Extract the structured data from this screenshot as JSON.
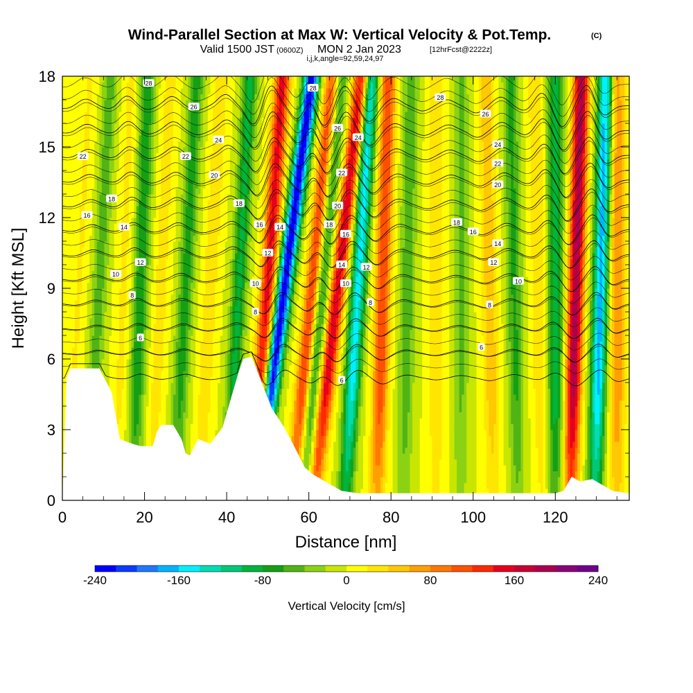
{
  "chart_data": {
    "type": "heatmap",
    "title": "Wind-Parallel Section at Max W: Vertical Velocity & Pot.Temp.",
    "title_mark": "(C)",
    "subtitle_valid": "Valid 1500 JST",
    "subtitle_utc": "(0600Z)",
    "subtitle_date": "MON 2 Jan 2023",
    "subtitle_fcst": "[12hrFcst@2222z]",
    "subtitle_grid": "i,j,k,angle=92,59,24,97",
    "xlabel": "Distance [nm]",
    "ylabel": "Height [Kft MSL]",
    "xlim": [
      0,
      138
    ],
    "ylim": [
      0,
      18
    ],
    "x_ticks": [
      "0",
      "20",
      "40",
      "60",
      "80",
      "100",
      "120"
    ],
    "y_ticks": [
      "0",
      "3",
      "6",
      "9",
      "12",
      "15",
      "18"
    ],
    "colorbar": {
      "title": "Vertical Velocity [cm/s]",
      "range": [
        -240,
        240
      ],
      "tick_labels": [
        "-240",
        "-160",
        "-80",
        "0",
        "80",
        "160",
        "240"
      ],
      "colors": [
        "#0000ff",
        "#0a3cff",
        "#1e78ff",
        "#00b4ff",
        "#00f0ff",
        "#00dcb4",
        "#00c878",
        "#00b43c",
        "#14a014",
        "#50b414",
        "#8cd214",
        "#c8e600",
        "#ffff00",
        "#ffe600",
        "#ffc800",
        "#ffa000",
        "#ff7800",
        "#ff5000",
        "#ff2800",
        "#e6001e",
        "#c80032",
        "#aa0050",
        "#8c0078",
        "#6e008c"
      ]
    },
    "terrain": {
      "x": [
        0,
        1,
        2,
        5,
        9,
        12,
        13,
        14,
        17,
        19,
        22,
        23,
        24,
        27,
        29,
        30,
        31,
        33,
        36,
        39,
        41,
        43,
        44,
        46,
        47,
        49,
        51,
        54,
        57,
        59,
        61,
        63,
        65,
        68,
        72,
        80,
        90,
        100,
        110,
        120,
        122,
        124,
        126,
        129,
        131,
        134,
        138
      ],
      "y": [
        0,
        5.2,
        5.6,
        5.6,
        5.6,
        4.6,
        3.6,
        2.6,
        2.4,
        2.3,
        2.3,
        2.9,
        3.2,
        3.2,
        2.6,
        2.0,
        1.9,
        2.6,
        2.4,
        3.1,
        4.3,
        5.5,
        6.0,
        6.1,
        5.7,
        4.8,
        3.9,
        3.1,
        2.1,
        1.4,
        1.1,
        0.9,
        0.7,
        0.4,
        0.3,
        0.3,
        0.3,
        0.3,
        0.3,
        0.3,
        0.4,
        1.0,
        0.8,
        0.9,
        0.7,
        0.4,
        0.3
      ]
    },
    "w_bands": [
      {
        "x": 4,
        "w": 22,
        "tilt": 0.3
      },
      {
        "x": 9,
        "w": -50,
        "tilt": 0.3
      },
      {
        "x": 15,
        "w": 25,
        "tilt": 0.2
      },
      {
        "x": 19,
        "w": -75,
        "tilt": 0.2
      },
      {
        "x": 24,
        "w": 30,
        "tilt": 0.25
      },
      {
        "x": 30,
        "w": -70,
        "tilt": 0.3
      },
      {
        "x": 36,
        "w": 35,
        "tilt": 0.3
      },
      {
        "x": 43,
        "w": -85,
        "tilt": 0.3
      },
      {
        "x": 50,
        "w": 150,
        "tilt": 0.4
      },
      {
        "x": 54,
        "w": -240,
        "tilt": 0.75
      },
      {
        "x": 61,
        "w": 140,
        "tilt": 0.55
      },
      {
        "x": 63,
        "w": -95,
        "tilt": 0.5
      },
      {
        "x": 67,
        "w": 160,
        "tilt": 0.65
      },
      {
        "x": 72,
        "w": -150,
        "tilt": 0.35
      },
      {
        "x": 78,
        "w": 120,
        "tilt": 0.15
      },
      {
        "x": 84,
        "w": -55,
        "tilt": 0.1
      },
      {
        "x": 91,
        "w": 40,
        "tilt": 0.0
      },
      {
        "x": 97,
        "w": -45,
        "tilt": 0.0
      },
      {
        "x": 104,
        "w": 55,
        "tilt": -0.1
      },
      {
        "x": 110,
        "w": -65,
        "tilt": -0.1
      },
      {
        "x": 116,
        "w": 40,
        "tilt": -0.1
      },
      {
        "x": 120,
        "w": -100,
        "tilt": 0.0
      },
      {
        "x": 125,
        "w": 190,
        "tilt": 0.15
      },
      {
        "x": 131,
        "w": -170,
        "tilt": 0.15
      },
      {
        "x": 135,
        "w": 80,
        "tilt": 0.0
      }
    ],
    "theta_levels": [
      6,
      8,
      10,
      12,
      14,
      16,
      18,
      20,
      22,
      24,
      26,
      28
    ],
    "contour_labels": [
      {
        "text": "28",
        "x": 21,
        "y": 17.7
      },
      {
        "text": "26",
        "x": 32,
        "y": 16.7
      },
      {
        "text": "24",
        "x": 38,
        "y": 15.3
      },
      {
        "text": "22",
        "x": 5,
        "y": 14.6
      },
      {
        "text": "22",
        "x": 30,
        "y": 14.6
      },
      {
        "text": "20",
        "x": 37,
        "y": 13.8
      },
      {
        "text": "18",
        "x": 12,
        "y": 12.8
      },
      {
        "text": "18",
        "x": 43,
        "y": 12.6
      },
      {
        "text": "16",
        "x": 6,
        "y": 12.1
      },
      {
        "text": "14",
        "x": 15,
        "y": 11.6
      },
      {
        "text": "16",
        "x": 48,
        "y": 11.7
      },
      {
        "text": "14",
        "x": 53,
        "y": 11.6
      },
      {
        "text": "12",
        "x": 19,
        "y": 10.1
      },
      {
        "text": "12",
        "x": 50,
        "y": 10.5
      },
      {
        "text": "10",
        "x": 13,
        "y": 9.6
      },
      {
        "text": "10",
        "x": 47,
        "y": 9.2
      },
      {
        "text": "8",
        "x": 17,
        "y": 8.7
      },
      {
        "text": "8",
        "x": 47,
        "y": 8
      },
      {
        "text": "6",
        "x": 19,
        "y": 6.9
      },
      {
        "text": "28",
        "x": 61,
        "y": 17.5
      },
      {
        "text": "26",
        "x": 67,
        "y": 15.8
      },
      {
        "text": "24",
        "x": 72,
        "y": 15.4
      },
      {
        "text": "22",
        "x": 68,
        "y": 13.9
      },
      {
        "text": "20",
        "x": 67,
        "y": 12.5
      },
      {
        "text": "18",
        "x": 65,
        "y": 11.7
      },
      {
        "text": "16",
        "x": 69,
        "y": 11.3
      },
      {
        "text": "14",
        "x": 68,
        "y": 10.0
      },
      {
        "text": "12",
        "x": 74,
        "y": 9.9
      },
      {
        "text": "10",
        "x": 69,
        "y": 9.2
      },
      {
        "text": "8",
        "x": 75,
        "y": 8.4
      },
      {
        "text": "6",
        "x": 68,
        "y": 5.1
      },
      {
        "text": "28",
        "x": 92,
        "y": 17.1
      },
      {
        "text": "26",
        "x": 103,
        "y": 16.4
      },
      {
        "text": "24",
        "x": 106,
        "y": 15.1
      },
      {
        "text": "22",
        "x": 106,
        "y": 14.3
      },
      {
        "text": "20",
        "x": 106,
        "y": 13.4
      },
      {
        "text": "18",
        "x": 96,
        "y": 11.8
      },
      {
        "text": "16",
        "x": 100,
        "y": 11.4
      },
      {
        "text": "14",
        "x": 106,
        "y": 10.9
      },
      {
        "text": "12",
        "x": 105,
        "y": 10.1
      },
      {
        "text": "10",
        "x": 111,
        "y": 9.3
      },
      {
        "text": "8",
        "x": 104,
        "y": 8.3
      },
      {
        "text": "6",
        "x": 102,
        "y": 6.5
      }
    ],
    "grid": false,
    "legend": "colorbar-bottom"
  }
}
